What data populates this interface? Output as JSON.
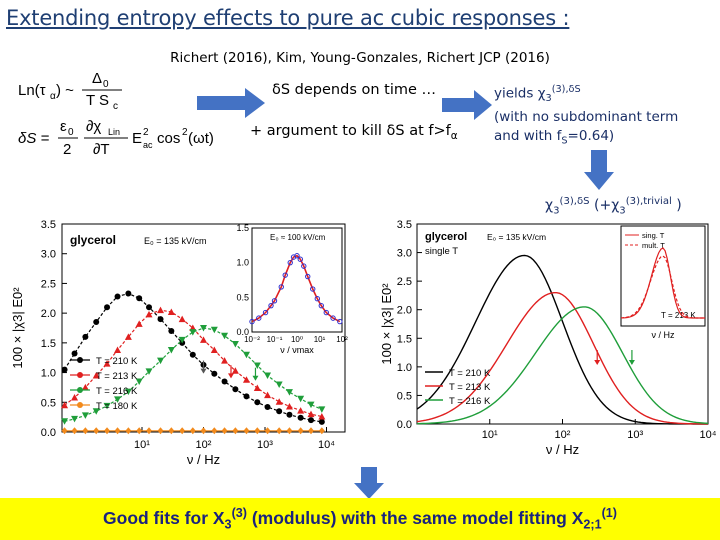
{
  "slide": {
    "title": "Extending entropy effects to pure ac cubic responses :",
    "citation": "Richert (2016), Kim, Young-Gonzales, Richert JCP (2016)",
    "ds_depends": "δS depends on time …",
    "argument": "+ argument to kill δS at f>f",
    "argument_sub": "α",
    "yields_line1": "yields χ",
    "yields_line1_sub": "3",
    "yields_line1_sup": "(3),δS",
    "yields_line2": "(with no subdominant term",
    "yields_line3": "and with f",
    "yields_line3_sub": "S",
    "yields_line3_end": "=0.64)",
    "chi_label": "χ",
    "chi_label_sub": "3",
    "chi_label_sup": "(3),δS",
    "chi_label_mid": " (+χ",
    "chi_label_mid_sub": "3",
    "chi_label_mid_sup": "(3),trivial",
    "chi_label_end": " )",
    "banner_text": "Good fits for X",
    "banner_sub": "3",
    "banner_sup": "(3)",
    "banner_mid": " (modulus) with the same model fitting X",
    "banner_sub2": "2;1",
    "banner_sup2": "(1)"
  },
  "equations": {
    "eq1_lhs": "Ln(τα) ~",
    "eq1_num": "Δ0",
    "eq1_den": "T Sc",
    "eq2_lhs": "δS =",
    "eq2_frac1_num": "ε0",
    "eq2_frac1_den": "2",
    "eq2_frac2_num": "∂χLin",
    "eq2_frac2_den": "∂T",
    "eq2_tail": "E²ac cos²(ωt)"
  },
  "colors": {
    "title": "#1f3f73",
    "banner_bg": "#ffff00",
    "banner_text": "#1a237e",
    "big_arrow": "#4472c4",
    "black_series": "#000000",
    "red_series": "#e02020",
    "green_series": "#1f9e3a",
    "orange_series": "#f28a1c",
    "blue_series": "#3030d0"
  },
  "chart_data": [
    {
      "type": "scatter",
      "panel": "left",
      "annotation": "glycerol",
      "field_label": "E₀ = 135 kV/cm",
      "xlabel": "ν / Hz",
      "ylabel": "100 × |χ3| E0²",
      "xscale": "log",
      "xlim": [
        0.5,
        20000
      ],
      "ylim": [
        0,
        3.5
      ],
      "y_ticks": [
        "0.0",
        "0.5",
        "1.0",
        "1.5",
        "2.0",
        "2.5",
        "3.0",
        "3.5"
      ],
      "x_ticks": [
        "10¹",
        "10²",
        "10³",
        "10⁴"
      ],
      "series": [
        {
          "name": "T = 210 K",
          "color": "#000000",
          "marker": "circle",
          "x": [
            0.55,
            0.8,
            1.2,
            1.8,
            2.7,
            4,
            6,
            9,
            13,
            20,
            30,
            45,
            67,
            100,
            150,
            220,
            330,
            500,
            750,
            1100,
            1700,
            2500,
            3800,
            5600,
            8400
          ],
          "y": [
            1.05,
            1.32,
            1.6,
            1.85,
            2.1,
            2.28,
            2.33,
            2.25,
            2.1,
            1.9,
            1.7,
            1.5,
            1.3,
            1.13,
            0.98,
            0.85,
            0.72,
            0.6,
            0.5,
            0.42,
            0.35,
            0.29,
            0.24,
            0.2,
            0.17
          ]
        },
        {
          "name": "T = 213 K",
          "color": "#e02020",
          "marker": "triangle",
          "x": [
            0.55,
            0.8,
            1.2,
            1.8,
            2.7,
            4,
            6,
            9,
            13,
            20,
            30,
            45,
            67,
            100,
            150,
            220,
            330,
            500,
            750,
            1100,
            1700,
            2500,
            3800,
            5600,
            8400
          ],
          "y": [
            0.45,
            0.58,
            0.75,
            0.95,
            1.15,
            1.38,
            1.6,
            1.82,
            1.98,
            2.05,
            2.02,
            1.9,
            1.75,
            1.55,
            1.38,
            1.2,
            1.03,
            0.88,
            0.74,
            0.62,
            0.51,
            0.43,
            0.36,
            0.3,
            0.26
          ]
        },
        {
          "name": "T = 216 K",
          "color": "#1f9e3a",
          "marker": "triangle-down",
          "x": [
            0.55,
            0.8,
            1.2,
            1.8,
            2.7,
            4,
            6,
            9,
            13,
            20,
            30,
            45,
            67,
            100,
            150,
            220,
            330,
            500,
            750,
            1100,
            1700,
            2500,
            3800,
            5600,
            8400
          ],
          "y": [
            0.18,
            0.22,
            0.28,
            0.35,
            0.44,
            0.55,
            0.68,
            0.85,
            1.02,
            1.2,
            1.38,
            1.55,
            1.68,
            1.75,
            1.72,
            1.62,
            1.48,
            1.3,
            1.12,
            0.95,
            0.8,
            0.67,
            0.56,
            0.46,
            0.38
          ]
        },
        {
          "name": "T = 180 K",
          "color": "#f28a1c",
          "marker": "diamond",
          "x": [
            0.55,
            0.8,
            1.2,
            1.8,
            2.7,
            4,
            6,
            9,
            13,
            20,
            30,
            45,
            67,
            100,
            150,
            220,
            330,
            500,
            750,
            1100,
            1700,
            2500,
            3800,
            5600,
            8400
          ],
          "y": [
            0.02,
            0.02,
            0.02,
            0.02,
            0.02,
            0.02,
            0.02,
            0.02,
            0.02,
            0.02,
            0.02,
            0.02,
            0.02,
            0.02,
            0.02,
            0.02,
            0.02,
            0.02,
            0.02,
            0.02,
            0.02,
            0.02,
            0.02,
            0.02,
            0.02
          ]
        }
      ],
      "arrows": [
        {
          "x": 100,
          "y": 1.0,
          "color": "#555555"
        },
        {
          "x": 280,
          "y": 0.92,
          "color": "#e02020"
        },
        {
          "x": 700,
          "y": 0.88,
          "color": "#1f9e3a"
        }
      ],
      "inset": {
        "field_label": "E₀ ≈ 100 kV/cm",
        "xlabel": "ν / νmax",
        "ylim": [
          0,
          1.5
        ],
        "y_ticks": [
          "0.0",
          "0.5",
          "1.0",
          "1.5"
        ],
        "x_ticks": [
          "10⁻²",
          "10⁻¹",
          "10⁰",
          "10¹",
          "10²"
        ],
        "data_x": [
          0.01,
          0.02,
          0.04,
          0.07,
          0.1,
          0.2,
          0.3,
          0.5,
          0.7,
          1.0,
          1.4,
          2,
          3,
          5,
          8,
          12,
          20,
          40,
          80
        ],
        "data_y": [
          0.15,
          0.2,
          0.28,
          0.38,
          0.45,
          0.65,
          0.82,
          1.0,
          1.08,
          1.1,
          1.05,
          0.95,
          0.8,
          0.62,
          0.48,
          0.38,
          0.28,
          0.2,
          0.15
        ]
      }
    },
    {
      "type": "line",
      "panel": "right",
      "annotation": "glycerol",
      "field_label": "E₀ = 135 kV/cm",
      "subtitle": "single T",
      "subtitle_sub": "fic",
      "xlabel": "ν / Hz",
      "ylabel": "100 × |χ3| E0²",
      "xscale": "log",
      "xlim": [
        1,
        10000
      ],
      "ylim": [
        0,
        3.5
      ],
      "y_ticks": [
        "0.0",
        "0.5",
        "1.0",
        "1.5",
        "2.0",
        "2.5",
        "3.0",
        "3.5"
      ],
      "x_ticks": [
        "10¹",
        "10²",
        "10³",
        "10⁴"
      ],
      "series": [
        {
          "name": "T = 210 K",
          "color": "#000000",
          "peak_x": 30,
          "peak_y": 2.95
        },
        {
          "name": "T = 213 K",
          "color": "#e02020",
          "peak_x": 80,
          "peak_y": 2.3
        },
        {
          "name": "T = 216 K",
          "color": "#1f9e3a",
          "peak_x": 200,
          "peak_y": 2.05
        }
      ],
      "arrows": [
        {
          "x": 300,
          "y": 1.05,
          "color": "#e02020"
        },
        {
          "x": 900,
          "y": 1.05,
          "color": "#1f9e3a"
        }
      ],
      "inset": {
        "legend": [
          "sing. T",
          "mult. T"
        ],
        "legend_sub": "fic",
        "temperature": "T = 213 K",
        "xlabel": "ν / Hz"
      }
    }
  ]
}
